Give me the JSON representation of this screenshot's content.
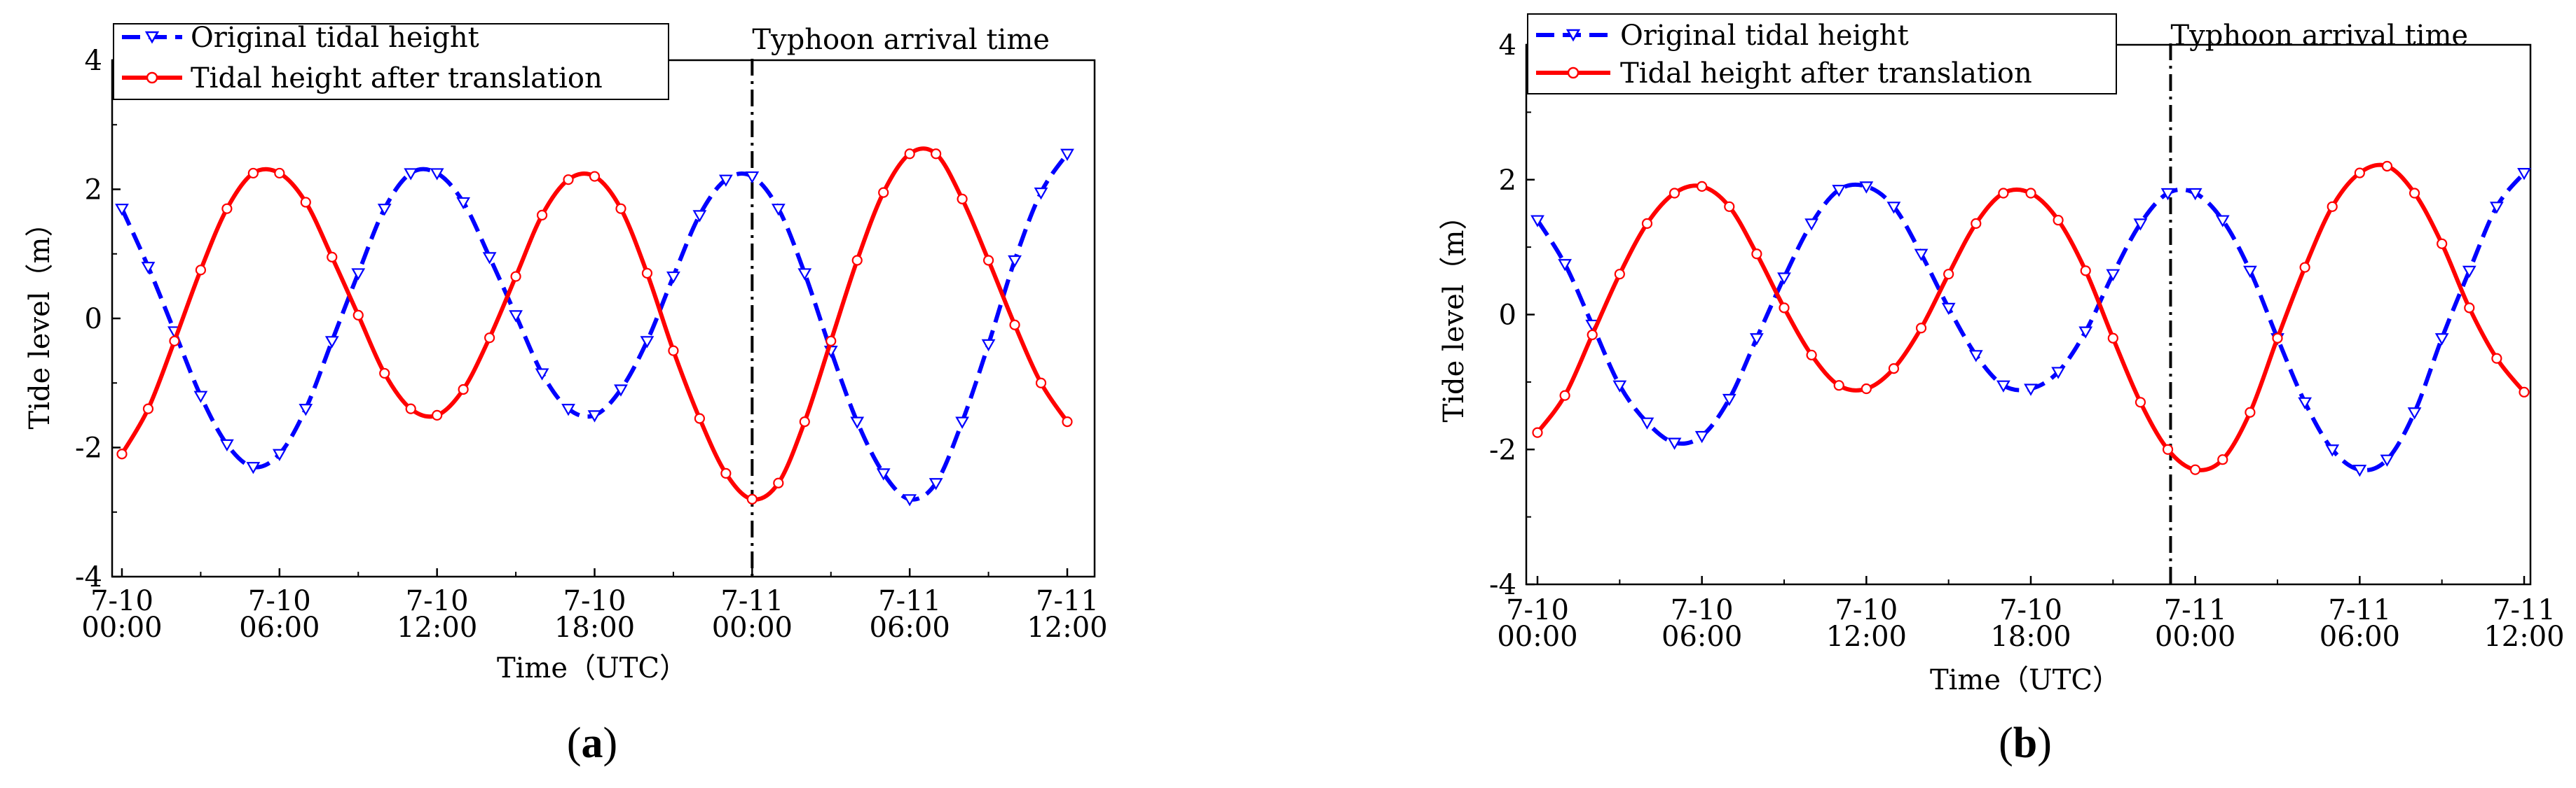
{
  "chart_data": [
    {
      "type": "line",
      "panel_label": "a",
      "xlabel": "Time（UTC）",
      "ylabel": "Tide level（m）",
      "x_unit": "hours since 7-10 00:00",
      "xlim": [
        0,
        36
      ],
      "ylim": [
        -4,
        4
      ],
      "yticks": [
        4,
        2,
        0,
        -2,
        -4
      ],
      "xticks": [
        {
          "hour": 0,
          "line1": "7-10",
          "line2": "00:00"
        },
        {
          "hour": 6,
          "line1": "7-10",
          "line2": "06:00"
        },
        {
          "hour": 12,
          "line1": "7-10",
          "line2": "12:00"
        },
        {
          "hour": 18,
          "line1": "7-10",
          "line2": "18:00"
        },
        {
          "hour": 24,
          "line1": "7-11",
          "line2": "00:00"
        },
        {
          "hour": 30,
          "line1": "7-11",
          "line2": "06:00"
        },
        {
          "hour": 36,
          "line1": "7-11",
          "line2": "12:00"
        }
      ],
      "legend": {
        "placement": "top-left"
      },
      "annotation": {
        "text": "Typhoon arrival time",
        "x": 24
      },
      "series": [
        {
          "name": "Original tidal height",
          "color": "#0000ff",
          "style": "dashed",
          "marker": "triangle-down",
          "x": [
            0,
            1,
            2,
            3,
            4,
            5,
            6,
            7,
            8,
            9,
            10,
            11,
            12,
            13,
            14,
            15,
            16,
            17,
            18,
            19,
            20,
            21,
            22,
            23,
            24,
            25,
            26,
            27,
            28,
            29,
            30,
            31,
            32,
            33,
            34,
            35,
            36
          ],
          "values": [
            1.7,
            0.8,
            -0.2,
            -1.2,
            -1.95,
            -2.3,
            -2.1,
            -1.4,
            -0.35,
            0.7,
            1.7,
            2.25,
            2.25,
            1.8,
            0.95,
            0.05,
            -0.85,
            -1.4,
            -1.5,
            -1.1,
            -0.35,
            0.65,
            1.6,
            2.15,
            2.2,
            1.7,
            0.7,
            -0.5,
            -1.6,
            -2.4,
            -2.8,
            -2.55,
            -1.6,
            -0.4,
            0.9,
            1.95,
            2.55
          ]
        },
        {
          "name": "Tidal height after translation",
          "color": "#ff0000",
          "style": "solid",
          "marker": "circle",
          "x": [
            0,
            1,
            2,
            3,
            4,
            5,
            6,
            7,
            8,
            9,
            10,
            11,
            12,
            13,
            14,
            15,
            16,
            17,
            18,
            19,
            20,
            21,
            22,
            23,
            24,
            25,
            26,
            27,
            28,
            29,
            30,
            31,
            32,
            33,
            34,
            35,
            36
          ],
          "values": [
            -2.1,
            -1.4,
            -0.35,
            0.75,
            1.7,
            2.25,
            2.25,
            1.8,
            0.95,
            0.05,
            -0.85,
            -1.4,
            -1.5,
            -1.1,
            -0.3,
            0.65,
            1.6,
            2.15,
            2.2,
            1.7,
            0.7,
            -0.5,
            -1.55,
            -2.4,
            -2.8,
            -2.55,
            -1.6,
            -0.35,
            0.9,
            1.95,
            2.55,
            2.55,
            1.85,
            0.9,
            -0.1,
            -1.0,
            -1.6
          ]
        }
      ]
    },
    {
      "type": "line",
      "panel_label": "b",
      "xlabel": "Time（UTC）",
      "ylabel": "Tide level（m）",
      "x_unit": "hours since 7-10 00:00",
      "xlim": [
        0,
        36
      ],
      "ylim": [
        -4,
        4
      ],
      "yticks": [
        4,
        2,
        0,
        -2,
        -4
      ],
      "xticks": [
        {
          "hour": 0,
          "line1": "7-10",
          "line2": "00:00"
        },
        {
          "hour": 6,
          "line1": "7-10",
          "line2": "06:00"
        },
        {
          "hour": 12,
          "line1": "7-10",
          "line2": "12:00"
        },
        {
          "hour": 18,
          "line1": "7-10",
          "line2": "18:00"
        },
        {
          "hour": 24,
          "line1": "7-11",
          "line2": "00:00"
        },
        {
          "hour": 30,
          "line1": "7-11",
          "line2": "06:00"
        },
        {
          "hour": 36,
          "line1": "7-11",
          "line2": "12:00"
        }
      ],
      "legend": {
        "placement": "top-left"
      },
      "annotation": {
        "text": "Typhoon arrival time",
        "x": 23.1
      },
      "series": [
        {
          "name": "Original tidal height",
          "color": "#0000ff",
          "style": "dashed",
          "marker": "triangle-down",
          "x": [
            0,
            1,
            2,
            3,
            4,
            5,
            6,
            7,
            8,
            9,
            10,
            11,
            12,
            13,
            14,
            15,
            16,
            17,
            18,
            19,
            20,
            21,
            22,
            23,
            24,
            25,
            26,
            27,
            28,
            29,
            30,
            31,
            32,
            33,
            34,
            35,
            36
          ],
          "values": [
            1.4,
            0.75,
            -0.15,
            -1.05,
            -1.6,
            -1.9,
            -1.8,
            -1.25,
            -0.35,
            0.55,
            1.35,
            1.85,
            1.9,
            1.6,
            0.9,
            0.1,
            -0.6,
            -1.05,
            -1.1,
            -0.85,
            -0.25,
            0.6,
            1.35,
            1.8,
            1.8,
            1.4,
            0.65,
            -0.35,
            -1.3,
            -2.0,
            -2.3,
            -2.15,
            -1.45,
            -0.35,
            0.65,
            1.6,
            2.1
          ]
        },
        {
          "name": "Tidal height after translation",
          "color": "#ff0000",
          "style": "solid",
          "marker": "circle",
          "x": [
            0,
            1,
            2,
            3,
            4,
            5,
            6,
            7,
            8,
            9,
            10,
            11,
            12,
            13,
            14,
            15,
            16,
            17,
            18,
            19,
            20,
            21,
            22,
            23,
            24,
            25,
            26,
            27,
            28,
            29,
            30,
            31,
            32,
            33,
            34,
            35,
            36
          ],
          "values": [
            -1.75,
            -1.2,
            -0.3,
            0.6,
            1.35,
            1.8,
            1.9,
            1.6,
            0.9,
            0.1,
            -0.6,
            -1.05,
            -1.1,
            -0.8,
            -0.2,
            0.6,
            1.35,
            1.8,
            1.8,
            1.4,
            0.65,
            -0.35,
            -1.3,
            -2.0,
            -2.3,
            -2.15,
            -1.45,
            -0.35,
            0.7,
            1.6,
            2.1,
            2.2,
            1.8,
            1.05,
            0.1,
            -0.65,
            -1.15
          ]
        }
      ]
    }
  ]
}
